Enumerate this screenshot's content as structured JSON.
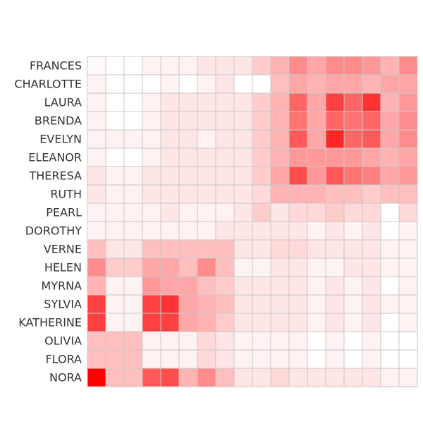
{
  "chart_data": {
    "type": "heatmap",
    "title": "",
    "xlabel": "",
    "ylabel": "",
    "rows": [
      "FRANCES",
      "CHARLOTTE",
      "LAURA",
      "BRENDA",
      "EVELYN",
      "ELEANOR",
      "THERESA",
      "RUTH",
      "PEARL",
      "DOROTHY",
      "VERNE",
      "HELEN",
      "MYRNA",
      "SYLVIA",
      "KATHERINE",
      "OLIVIA",
      "FLORA",
      "NORA"
    ],
    "column_count": 18,
    "value_range": [
      0,
      1
    ],
    "color_low": "#ffffff",
    "color_high": "#ff0000",
    "grid": true,
    "values": [
      [
        0.02,
        0.0,
        0.0,
        0.05,
        0.05,
        0.05,
        0.1,
        0.1,
        0.1,
        0.2,
        0.3,
        0.45,
        0.35,
        0.45,
        0.45,
        0.4,
        0.3,
        0.45
      ],
      [
        0.05,
        0.0,
        0.0,
        0.0,
        0.05,
        0.0,
        0.05,
        0.1,
        0.0,
        0.0,
        0.25,
        0.35,
        0.3,
        0.35,
        0.35,
        0.3,
        0.35,
        0.35
      ],
      [
        0.05,
        0.0,
        0.0,
        0.05,
        0.1,
        0.1,
        0.1,
        0.1,
        0.1,
        0.2,
        0.3,
        0.6,
        0.35,
        0.75,
        0.6,
        0.8,
        0.3,
        0.4
      ],
      [
        0.05,
        0.0,
        0.0,
        0.05,
        0.1,
        0.1,
        0.1,
        0.1,
        0.1,
        0.2,
        0.3,
        0.55,
        0.35,
        0.6,
        0.55,
        0.6,
        0.35,
        0.45
      ],
      [
        0.05,
        0.05,
        0.05,
        0.05,
        0.1,
        0.1,
        0.05,
        0.1,
        0.1,
        0.2,
        0.3,
        0.65,
        0.35,
        0.85,
        0.6,
        0.65,
        0.35,
        0.45
      ],
      [
        0.05,
        0.0,
        0.0,
        0.05,
        0.1,
        0.1,
        0.1,
        0.1,
        0.1,
        0.2,
        0.3,
        0.4,
        0.4,
        0.4,
        0.4,
        0.35,
        0.3,
        0.35
      ],
      [
        0.1,
        0.05,
        0.05,
        0.1,
        0.1,
        0.1,
        0.1,
        0.1,
        0.1,
        0.2,
        0.35,
        0.7,
        0.4,
        0.65,
        0.55,
        0.5,
        0.35,
        0.4
      ],
      [
        0.1,
        0.05,
        0.05,
        0.1,
        0.1,
        0.1,
        0.1,
        0.1,
        0.1,
        0.15,
        0.3,
        0.3,
        0.3,
        0.25,
        0.25,
        0.2,
        0.25,
        0.25
      ],
      [
        0.05,
        0.05,
        0.05,
        0.05,
        0.1,
        0.05,
        0.05,
        0.05,
        0.1,
        0.2,
        0.1,
        0.15,
        0.15,
        0.2,
        0.15,
        0.15,
        0.0,
        0.15
      ],
      [
        0.05,
        0.05,
        0.05,
        0.05,
        0.05,
        0.05,
        0.05,
        0.1,
        0.1,
        0.1,
        0.1,
        0.1,
        0.05,
        0.1,
        0.05,
        0.1,
        0.0,
        0.05
      ],
      [
        0.25,
        0.1,
        0.1,
        0.25,
        0.25,
        0.25,
        0.25,
        0.25,
        0.1,
        0.1,
        0.15,
        0.15,
        0.1,
        0.1,
        0.1,
        0.1,
        0.05,
        0.05
      ],
      [
        0.45,
        0.2,
        0.2,
        0.35,
        0.35,
        0.25,
        0.45,
        0.25,
        0.05,
        0.05,
        0.1,
        0.1,
        0.05,
        0.05,
        0.1,
        0.1,
        0.05,
        0.05
      ],
      [
        0.3,
        0.05,
        0.05,
        0.4,
        0.35,
        0.35,
        0.25,
        0.2,
        0.1,
        0.1,
        0.1,
        0.1,
        0.05,
        0.1,
        0.05,
        0.1,
        0.0,
        0.05
      ],
      [
        0.75,
        0.05,
        0.05,
        0.75,
        0.8,
        0.35,
        0.3,
        0.25,
        0.1,
        0.1,
        0.1,
        0.1,
        0.05,
        0.1,
        0.05,
        0.1,
        0.05,
        0.05
      ],
      [
        0.75,
        0.05,
        0.05,
        0.75,
        0.75,
        0.35,
        0.3,
        0.2,
        0.1,
        0.1,
        0.1,
        0.1,
        0.05,
        0.1,
        0.05,
        0.1,
        0.0,
        0.05
      ],
      [
        0.25,
        0.25,
        0.25,
        0.05,
        0.05,
        0.05,
        0.15,
        0.1,
        0.05,
        0.05,
        0.05,
        0.05,
        0.0,
        0.05,
        0.0,
        0.05,
        0.0,
        0.0
      ],
      [
        0.25,
        0.25,
        0.25,
        0.05,
        0.05,
        0.05,
        0.15,
        0.1,
        0.05,
        0.05,
        0.05,
        0.05,
        0.0,
        0.05,
        0.0,
        0.05,
        0.0,
        0.0
      ],
      [
        1.0,
        0.25,
        0.25,
        0.65,
        0.7,
        0.3,
        0.45,
        0.25,
        0.1,
        0.1,
        0.15,
        0.1,
        0.1,
        0.1,
        0.1,
        0.1,
        0.05,
        0.05
      ]
    ]
  }
}
